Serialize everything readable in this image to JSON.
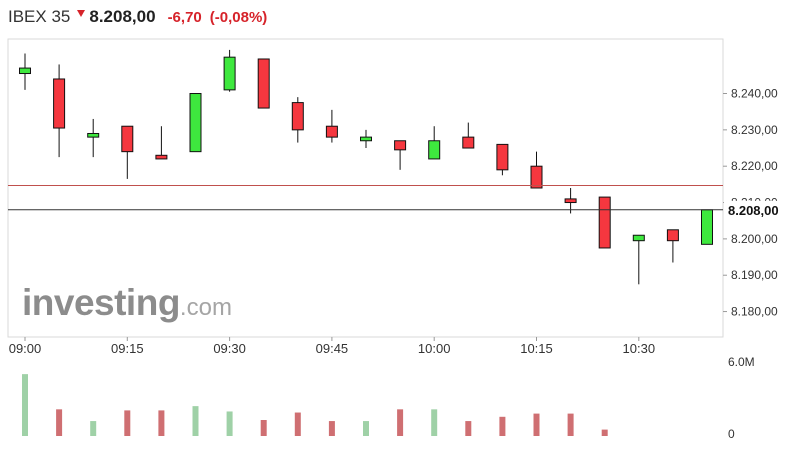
{
  "header": {
    "symbol": "IBEX 35",
    "price": "8.208,00",
    "change": "-6,70",
    "change_pct": "(-0,08%)",
    "trend_icon": "down-arrow-icon",
    "trend_color": "#d6232a"
  },
  "watermark": {
    "brand": "investing",
    "domain": ".com"
  },
  "chart_data": {
    "type": "candlestick",
    "interval_minutes": 5,
    "x_tick_labels": [
      "09:00",
      "09:15",
      "09:30",
      "09:45",
      "10:00",
      "10:15",
      "10:30"
    ],
    "y_tick_labels": [
      "8.240,00",
      "8.230,00",
      "8.220,00",
      "8.210,00",
      "8.200,00",
      "8.190,00",
      "8.180,00"
    ],
    "y_ticks": [
      8240,
      8230,
      8220,
      8210,
      8200,
      8190,
      8180
    ],
    "ylim": [
      8173,
      8255
    ],
    "current_price": 8208.0,
    "current_price_label": "8.208,00",
    "reference_line": 8214.7,
    "colors": {
      "up": "#3ee83e",
      "down": "#f5373f",
      "reference": "#c0504d",
      "vol_up": "#9fd1a7",
      "vol_down": "#cf6f72"
    },
    "candles": [
      {
        "time": "09:00",
        "open": 8245.5,
        "high": 8251.0,
        "low": 8241.0,
        "close": 8247.0
      },
      {
        "time": "09:05",
        "open": 8244.0,
        "high": 8248.0,
        "low": 8222.5,
        "close": 8230.5
      },
      {
        "time": "09:10",
        "open": 8228.0,
        "high": 8233.0,
        "low": 8222.5,
        "close": 8229.0
      },
      {
        "time": "09:15",
        "open": 8231.0,
        "high": 8231.0,
        "low": 8216.5,
        "close": 8224.0
      },
      {
        "time": "09:20",
        "open": 8223.0,
        "high": 8231.0,
        "low": 8222.0,
        "close": 8222.0
      },
      {
        "time": "09:25",
        "open": 8224.0,
        "high": 8240.0,
        "low": 8224.0,
        "close": 8240.0
      },
      {
        "time": "09:30",
        "open": 8241.0,
        "high": 8252.0,
        "low": 8240.5,
        "close": 8250.0
      },
      {
        "time": "09:35",
        "open": 8249.5,
        "high": 8249.5,
        "low": 8236.0,
        "close": 8236.0
      },
      {
        "time": "09:40",
        "open": 8237.5,
        "high": 8239.0,
        "low": 8226.5,
        "close": 8230.0
      },
      {
        "time": "09:45",
        "open": 8231.0,
        "high": 8235.5,
        "low": 8226.5,
        "close": 8228.0
      },
      {
        "time": "09:50",
        "open": 8227.0,
        "high": 8230.0,
        "low": 8225.0,
        "close": 8228.0
      },
      {
        "time": "09:55",
        "open": 8227.0,
        "high": 8227.0,
        "low": 8219.0,
        "close": 8224.5
      },
      {
        "time": "10:00",
        "open": 8222.0,
        "high": 8231.0,
        "low": 8222.0,
        "close": 8227.0
      },
      {
        "time": "10:05",
        "open": 8228.0,
        "high": 8232.0,
        "low": 8225.0,
        "close": 8225.0
      },
      {
        "time": "10:10",
        "open": 8226.0,
        "high": 8226.0,
        "low": 8217.5,
        "close": 8219.0
      },
      {
        "time": "10:15",
        "open": 8220.0,
        "high": 8224.0,
        "low": 8214.0,
        "close": 8214.0
      },
      {
        "time": "10:20",
        "open": 8211.0,
        "high": 8214.0,
        "low": 8207.0,
        "close": 8210.0
      },
      {
        "time": "10:25",
        "open": 8211.5,
        "high": 8211.5,
        "low": 8197.5,
        "close": 8197.5
      },
      {
        "time": "10:30",
        "open": 8199.5,
        "high": 8201.0,
        "low": 8187.5,
        "close": 8201.0
      },
      {
        "time": "10:35",
        "open": 8202.5,
        "high": 8202.5,
        "low": 8193.5,
        "close": 8199.5
      },
      {
        "time": "10:40",
        "open": 8198.5,
        "high": 8208.0,
        "low": 8198.5,
        "close": 8208.0
      }
    ],
    "volume": {
      "max_label": "6.0M",
      "min_label": "0",
      "max": 6.0,
      "unit": "M",
      "values": [
        5.8,
        2.5,
        1.4,
        2.4,
        2.4,
        2.8,
        2.3,
        1.5,
        2.2,
        1.4,
        1.4,
        2.5,
        2.5,
        1.4,
        1.8,
        2.1,
        2.1,
        0.6,
        0,
        0,
        0
      ]
    }
  }
}
